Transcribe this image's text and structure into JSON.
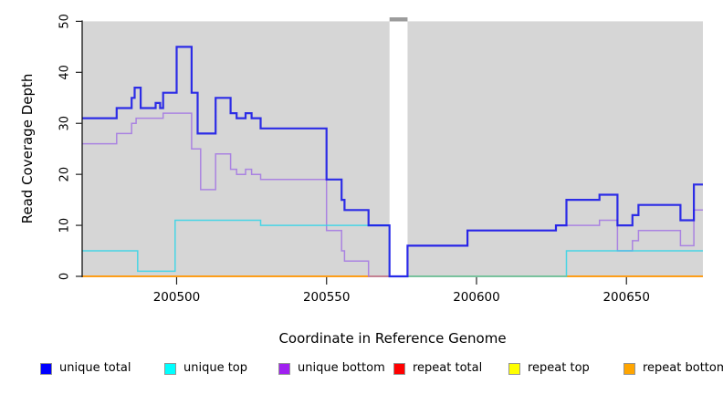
{
  "chart_data": {
    "type": "line",
    "subtype": "step-coverage",
    "title": "",
    "xlabel": "Coordinate in Reference Genome",
    "ylabel": "Read Coverage Depth",
    "xlim": [
      200468.5,
      200675.5
    ],
    "ylim": [
      0,
      50
    ],
    "x_ticks": [
      200500,
      200550,
      200600,
      200650
    ],
    "y_ticks": [
      0,
      10,
      20,
      30,
      40,
      50
    ],
    "grid": "off",
    "plot_background": "#D6D6D6",
    "gap_region": {
      "x_start": 200571,
      "x_end": 200577,
      "fill": "#FFFFFF",
      "cap_color": "#9C9C9C"
    },
    "legend_position": "bottom",
    "legend": [
      {
        "label": "unique total",
        "color": "#0000FF"
      },
      {
        "label": "unique top",
        "color": "#00FFFF"
      },
      {
        "label": "unique bottom",
        "color": "#A020F0"
      },
      {
        "label": "repeat total",
        "color": "#FF0000"
      },
      {
        "label": "repeat top",
        "color": "#FFFF00"
      },
      {
        "label": "repeat bottom",
        "color": "#FFA500"
      }
    ],
    "series": [
      {
        "name": "repeat total",
        "line_color": "#DC1430",
        "width": 1.4,
        "opacity": 1,
        "steps": [
          [
            200468.5,
            0
          ]
        ]
      },
      {
        "name": "repeat top",
        "line_color": "#FFFF00",
        "width": 1.4,
        "opacity": 1,
        "steps": [
          [
            200468.5,
            0
          ]
        ]
      },
      {
        "name": "repeat bottom",
        "line_color": "#FF9912",
        "width": 1.8,
        "opacity": 1,
        "steps": [
          [
            200468.5,
            0
          ]
        ]
      },
      {
        "name": "unique bottom",
        "line_color": "#9F6EE3",
        "width": 1.5,
        "opacity": 0.8,
        "steps": [
          [
            200468.5,
            26
          ],
          [
            200480,
            28
          ],
          [
            200485,
            30
          ],
          [
            200486.5,
            31
          ],
          [
            200495.5,
            32
          ],
          [
            200505,
            25
          ],
          [
            200508,
            17
          ],
          [
            200513,
            24
          ],
          [
            200518,
            21
          ],
          [
            200520,
            20
          ],
          [
            200523,
            21
          ],
          [
            200525,
            20
          ],
          [
            200528,
            19
          ],
          [
            200550,
            9
          ],
          [
            200555,
            5
          ],
          [
            200556,
            3
          ],
          [
            200564,
            0
          ],
          [
            200577,
            6
          ],
          [
            200597,
            9
          ],
          [
            200626.5,
            10
          ],
          [
            200641,
            11
          ],
          [
            200647,
            5
          ],
          [
            200652,
            7
          ],
          [
            200654,
            9
          ],
          [
            200668,
            6
          ],
          [
            200672.5,
            13
          ]
        ]
      },
      {
        "name": "unique top",
        "line_color": "#2FD5E8",
        "width": 1.5,
        "opacity": 0.85,
        "steps": [
          [
            200468.5,
            5
          ],
          [
            200487,
            1
          ],
          [
            200499.5,
            11
          ],
          [
            200528,
            10
          ],
          [
            200571,
            0
          ],
          [
            200630,
            5
          ]
        ]
      },
      {
        "name": "unique total",
        "line_color": "#1515E8",
        "width": 2.2,
        "opacity": 0.88,
        "steps": [
          [
            200468.5,
            31
          ],
          [
            200480,
            33
          ],
          [
            200485,
            35
          ],
          [
            200486,
            37
          ],
          [
            200488,
            33
          ],
          [
            200493,
            34
          ],
          [
            200494.5,
            33
          ],
          [
            200495.5,
            36
          ],
          [
            200500,
            45
          ],
          [
            200505,
            36
          ],
          [
            200507,
            28
          ],
          [
            200513,
            35
          ],
          [
            200518,
            32
          ],
          [
            200520,
            31
          ],
          [
            200523,
            32
          ],
          [
            200525,
            31
          ],
          [
            200528,
            29
          ],
          [
            200550,
            19
          ],
          [
            200555,
            15
          ],
          [
            200556,
            13
          ],
          [
            200564,
            10
          ],
          [
            200571,
            0
          ],
          [
            200577,
            6
          ],
          [
            200597,
            9
          ],
          [
            200626.5,
            10
          ],
          [
            200630,
            15
          ],
          [
            200641,
            16
          ],
          [
            200647,
            10
          ],
          [
            200652,
            12
          ],
          [
            200654,
            14
          ],
          [
            200668,
            11
          ],
          [
            200672.5,
            18
          ]
        ]
      }
    ],
    "overlap_note": "where lines coincide at depth 0 the semi-transparent strokes blend (cyan+orange looks green, purple+orange looks pink); only the blue trace crosses the white gap band"
  }
}
